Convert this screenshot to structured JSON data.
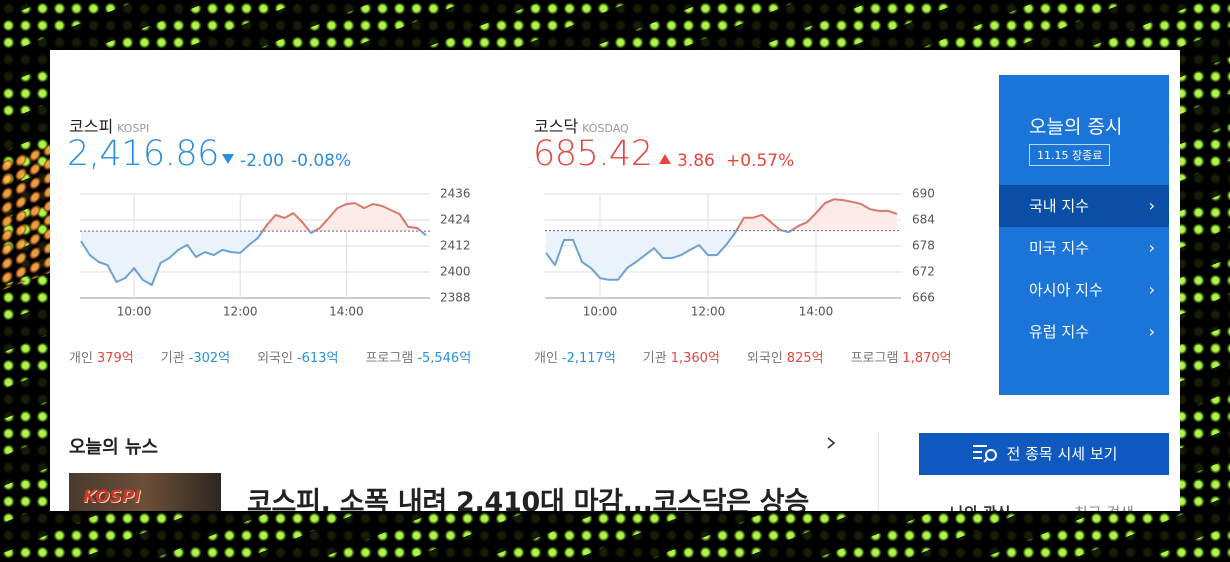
{
  "indices": [
    {
      "name": "코스피",
      "code": "KOSPI",
      "value": "2,416.86",
      "direction": "down",
      "change": "-2.00",
      "change_percent": "-0.08%",
      "investors": [
        {
          "label": "개인",
          "value": "379억"
        },
        {
          "label": "기관",
          "value": "-302억"
        },
        {
          "label": "외국인",
          "value": "-613억"
        },
        {
          "label": "프로그램",
          "value": "-5,546억"
        }
      ],
      "chart": {
        "type": "line",
        "x": [
          540,
          550,
          560,
          570,
          580,
          590,
          600,
          610,
          620,
          630,
          640,
          650,
          660,
          670,
          680,
          690,
          700,
          710,
          720,
          730,
          740,
          750,
          760,
          770,
          780,
          790,
          800,
          810,
          820,
          830,
          840,
          850,
          860,
          870,
          880,
          890,
          900,
          910,
          920,
          930
        ],
        "values": [
          2414.3,
          2407.8,
          2404.6,
          2403.2,
          2395.4,
          2397.2,
          2401.8,
          2396.3,
          2394.0,
          2404.2,
          2406.5,
          2410.2,
          2412.5,
          2406.9,
          2409.2,
          2407.8,
          2410.2,
          2409.2,
          2408.8,
          2412.5,
          2415.7,
          2421.7,
          2426.3,
          2424.9,
          2427.2,
          2423.1,
          2418.0,
          2420.3,
          2424.9,
          2429.5,
          2431.4,
          2431.8,
          2429.5,
          2431.4,
          2430.5,
          2428.6,
          2426.8,
          2420.8,
          2420.3,
          2416.9
        ],
        "baseline": 2418.86,
        "xlim": [
          540,
          930
        ],
        "xticks": [
          {
            "value": 600,
            "label": "10:00"
          },
          {
            "value": 720,
            "label": "12:00"
          },
          {
            "value": 840,
            "label": "14:00"
          }
        ],
        "ylim": [
          2388,
          2436
        ],
        "yticks": [
          2388,
          2400,
          2412,
          2424,
          2436
        ],
        "grid": true,
        "up_color": "#d9786d",
        "down_color": "#6fa2d3"
      }
    },
    {
      "name": "코스닥",
      "code": "KOSDAQ",
      "value": "685.42",
      "direction": "up",
      "change": "3.86",
      "change_percent": "+0.57%",
      "investors": [
        {
          "label": "개인",
          "value": "-2,117억"
        },
        {
          "label": "기관",
          "value": "1,360억"
        },
        {
          "label": "외국인",
          "value": "825억"
        },
        {
          "label": "프로그램",
          "value": "1,870억"
        }
      ],
      "chart": {
        "type": "line",
        "x": [
          540,
          550,
          560,
          570,
          580,
          590,
          600,
          610,
          620,
          630,
          640,
          650,
          660,
          670,
          680,
          690,
          700,
          710,
          720,
          730,
          740,
          750,
          760,
          770,
          780,
          790,
          800,
          810,
          820,
          830,
          840,
          850,
          860,
          870,
          880,
          890,
          900,
          910,
          920,
          930
        ],
        "values": [
          676.4,
          673.6,
          679.4,
          679.4,
          674.3,
          672.9,
          670.6,
          670.2,
          670.2,
          672.9,
          674.3,
          675.9,
          677.5,
          675.2,
          675.2,
          675.9,
          677.1,
          678.2,
          675.9,
          675.9,
          678.2,
          681.0,
          684.5,
          684.5,
          685.2,
          683.5,
          681.7,
          681.2,
          682.6,
          683.5,
          685.6,
          687.9,
          688.8,
          688.6,
          688.2,
          687.7,
          686.5,
          686.1,
          686.1,
          685.4
        ],
        "baseline": 681.56,
        "xlim": [
          540,
          930
        ],
        "xticks": [
          {
            "value": 600,
            "label": "10:00"
          },
          {
            "value": 720,
            "label": "12:00"
          },
          {
            "value": 840,
            "label": "14:00"
          }
        ],
        "ylim": [
          666,
          690
        ],
        "yticks": [
          666,
          672,
          678,
          684,
          690
        ],
        "grid": true,
        "up_color": "#d9786d",
        "down_color": "#6fa2d3"
      }
    }
  ],
  "sidebar": {
    "title": "오늘의 증시",
    "date_badge": "11.15 장종료",
    "menu": [
      "국내 지수",
      "미국 지수",
      "아시아 지수",
      "유럽 지수"
    ]
  },
  "news": {
    "title": "오늘의 뉴스",
    "thumbnail_label": "KOSPI",
    "headline": "코스피, 소폭 내려 2,410대 마감...코스닥은 상승"
  },
  "all_quotes_button": "전 종목 시세 보기",
  "tabs": [
    "나의 관심",
    "최근 검색"
  ]
}
